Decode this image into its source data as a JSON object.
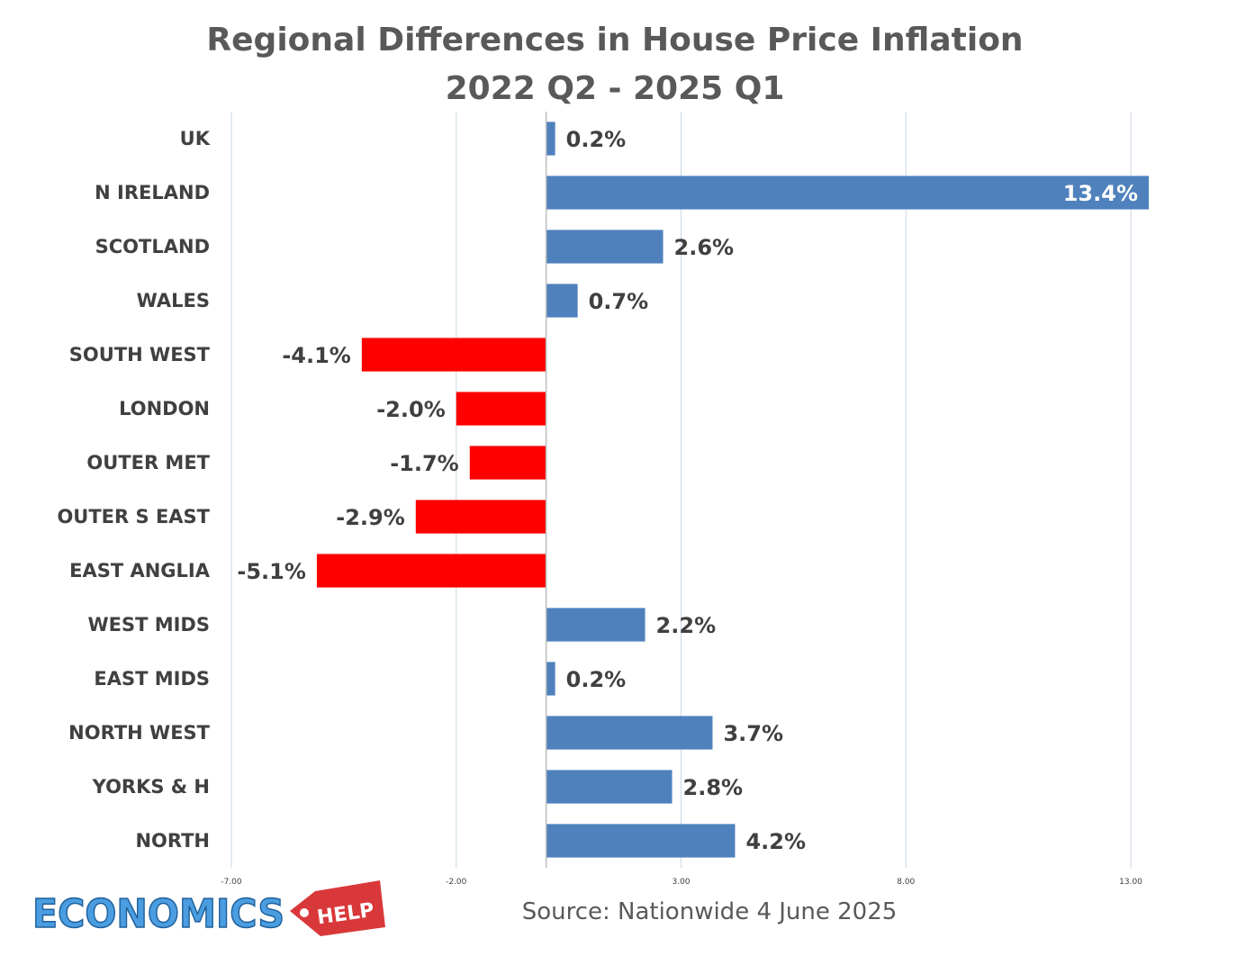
{
  "chart_data": {
    "type": "bar",
    "orientation": "horizontal",
    "title_line1": "Regional Differences in House Price Inflation",
    "title_line2": "2022 Q2 - 2025 Q1",
    "categories": [
      "UK",
      "N IRELAND",
      "SCOTLAND",
      "WALES",
      "SOUTH WEST",
      "LONDON",
      "OUTER MET",
      "OUTER S EAST",
      "EAST ANGLIA",
      "WEST MIDS",
      "EAST MIDS",
      "NORTH WEST",
      "YORKS & H",
      "NORTH"
    ],
    "values": [
      0.2,
      13.4,
      2.6,
      0.7,
      -4.1,
      -2.0,
      -1.7,
      -2.9,
      -5.1,
      2.2,
      0.2,
      3.7,
      2.8,
      4.2
    ],
    "value_labels": [
      "0.2%",
      "13.4%",
      "2.6%",
      "0.7%",
      "-4.1%",
      "-2.0%",
      "-1.7%",
      "-2.9%",
      "-5.1%",
      "2.2%",
      "0.2%",
      "3.7%",
      "2.8%",
      "4.2%"
    ],
    "xlim": [
      -7,
      13.5
    ],
    "xticks": [
      -7,
      -2,
      3,
      8,
      13
    ],
    "xtick_labels": [
      "-7.00",
      "-2.00",
      "3.00",
      "8.00",
      "13.00"
    ],
    "grid": "vertical",
    "xlabel": "",
    "ylabel": "",
    "colors": {
      "positive": "#4f81bd",
      "negative": "#ff0000",
      "grid": "#c9d7e6",
      "axis": "#bfbfbf"
    }
  },
  "source": "Source: Nationwide 4 June 2025",
  "logo": {
    "word1": "ECONOMICS",
    "word2": "HELP"
  }
}
